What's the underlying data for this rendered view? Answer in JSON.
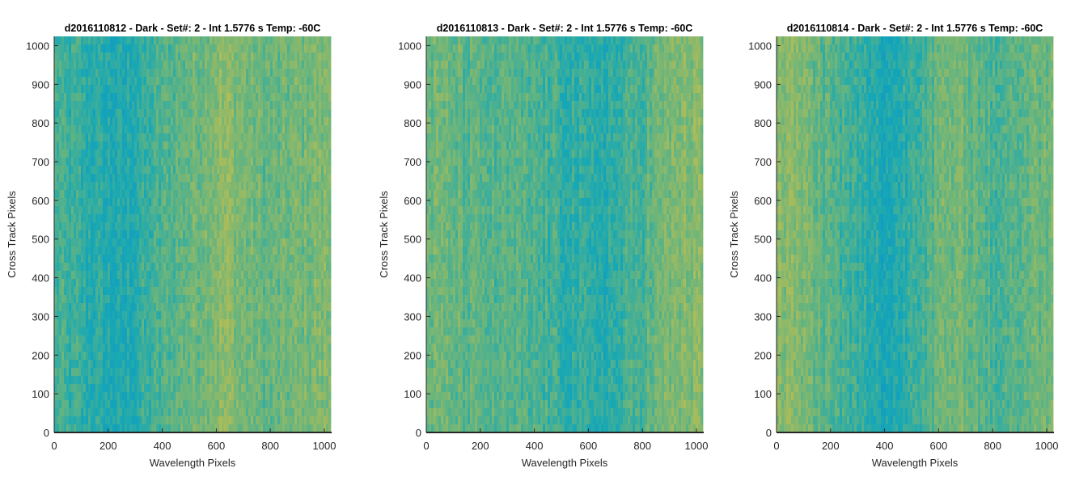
{
  "chart_data": [
    {
      "type": "heatmap",
      "title": "d2016110812 - Dark - Set#: 2 - Int 1.5776 s Temp: -60C",
      "xlabel": "Wavelength Pixels",
      "ylabel": "Cross Track Pixels",
      "xlim": [
        0,
        1024
      ],
      "ylim": [
        0,
        1024
      ],
      "xticks": [
        "0",
        "200",
        "400",
        "600",
        "800",
        "1000"
      ],
      "yticks": [
        "0",
        "100",
        "200",
        "300",
        "400",
        "500",
        "600",
        "700",
        "800",
        "900",
        "1000"
      ],
      "colormap": "parula",
      "column_profile": {
        "x": [
          0,
          100,
          200,
          250,
          300,
          400,
          500,
          600,
          650,
          700,
          800,
          900,
          1000,
          1024
        ],
        "level": [
          0.4,
          0.33,
          0.27,
          0.24,
          0.3,
          0.42,
          0.52,
          0.62,
          0.64,
          0.56,
          0.5,
          0.55,
          0.6,
          0.6
        ]
      }
    },
    {
      "type": "heatmap",
      "title": "d2016110813 - Dark - Set#: 2 - Int 1.5776 s Temp: -60C",
      "xlabel": "Wavelength Pixels",
      "ylabel": "Cross Track Pixels",
      "xlim": [
        0,
        1024
      ],
      "ylim": [
        0,
        1024
      ],
      "xticks": [
        "0",
        "200",
        "400",
        "600",
        "800",
        "1000"
      ],
      "yticks": [
        "0",
        "100",
        "200",
        "300",
        "400",
        "500",
        "600",
        "700",
        "800",
        "900",
        "1000"
      ],
      "colormap": "parula",
      "column_profile": {
        "x": [
          0,
          100,
          200,
          300,
          400,
          500,
          600,
          700,
          800,
          900,
          1000,
          1024
        ],
        "level": [
          0.55,
          0.5,
          0.46,
          0.44,
          0.42,
          0.36,
          0.3,
          0.32,
          0.44,
          0.58,
          0.62,
          0.6
        ]
      }
    },
    {
      "type": "heatmap",
      "title": "d2016110814 - Dark - Set#: 2 - Int 1.5776 s Temp: -60C",
      "xlabel": "Wavelength Pixels",
      "ylabel": "Cross Track Pixels",
      "xlim": [
        0,
        1024
      ],
      "ylim": [
        0,
        1024
      ],
      "xticks": [
        "0",
        "200",
        "400",
        "600",
        "800",
        "1000"
      ],
      "yticks": [
        "0",
        "100",
        "200",
        "300",
        "400",
        "500",
        "600",
        "700",
        "800",
        "900",
        "1000"
      ],
      "colormap": "parula",
      "column_profile": {
        "x": [
          0,
          100,
          200,
          300,
          400,
          450,
          500,
          600,
          700,
          800,
          900,
          1000,
          1024
        ],
        "level": [
          0.66,
          0.58,
          0.45,
          0.34,
          0.24,
          0.26,
          0.38,
          0.52,
          0.54,
          0.42,
          0.48,
          0.55,
          0.55
        ]
      }
    }
  ]
}
